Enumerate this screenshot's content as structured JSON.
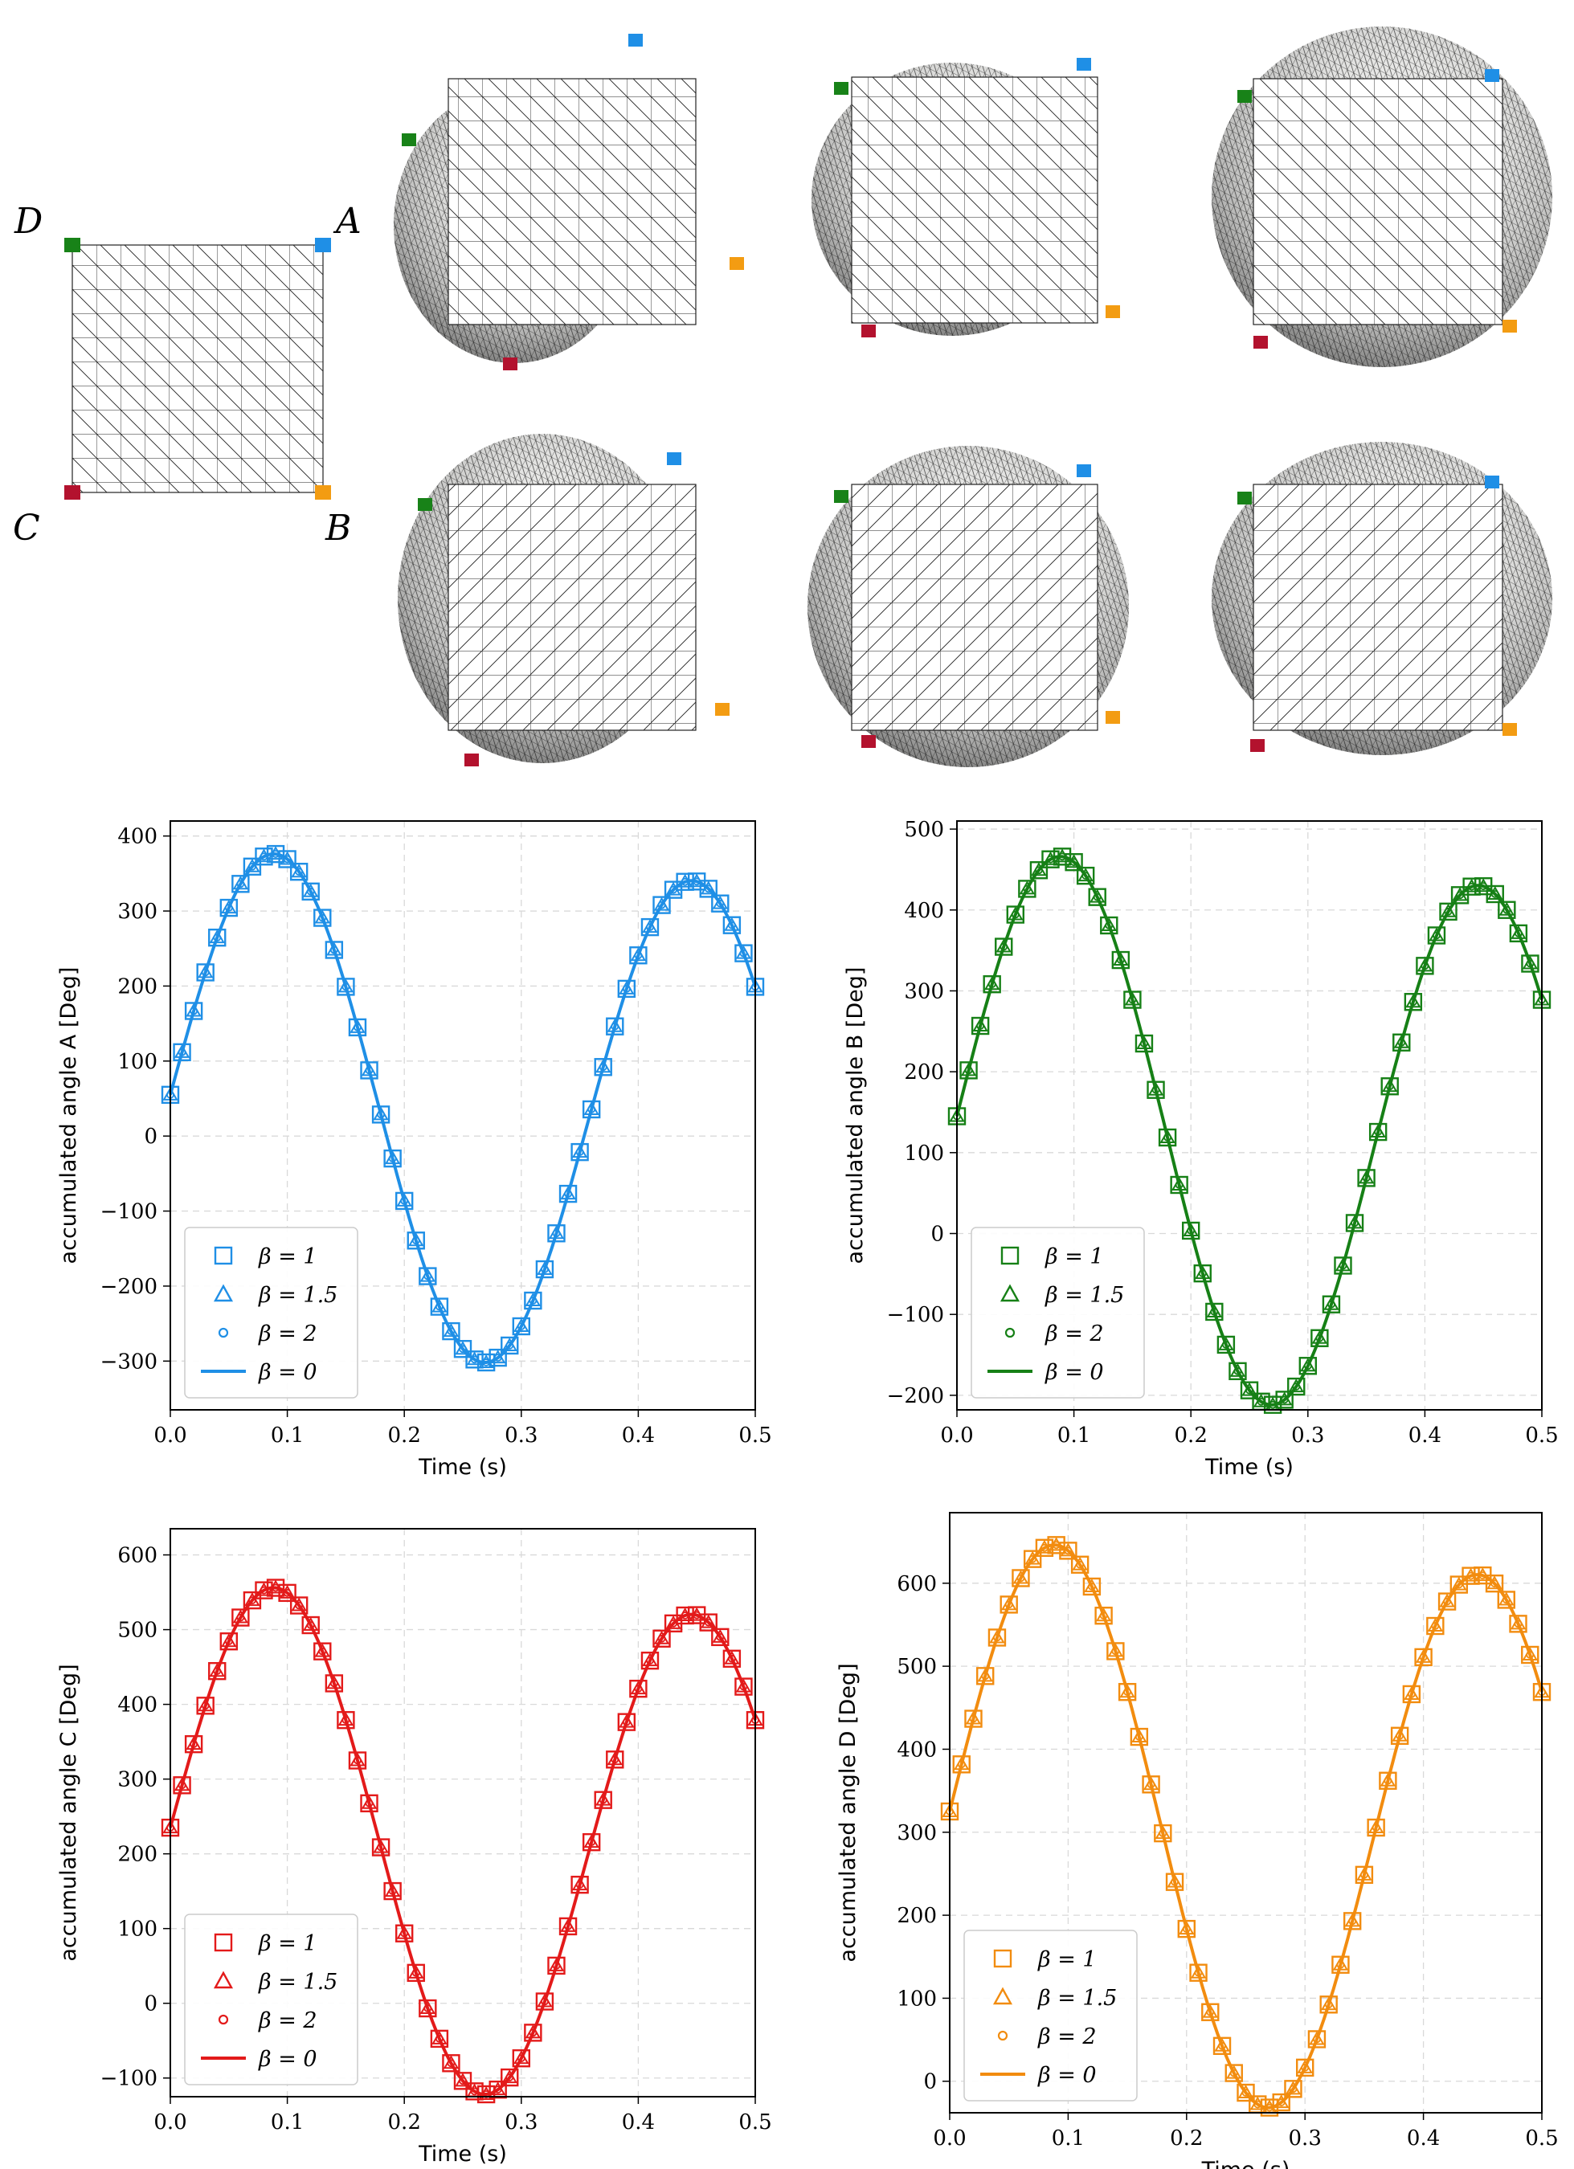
{
  "corners": {
    "labels": [
      {
        "key": "A",
        "text": "A",
        "color": "#1f8fe6"
      },
      {
        "key": "B",
        "text": "B",
        "color": "#f39c12"
      },
      {
        "key": "C",
        "text": "C",
        "color": "#b3122e"
      },
      {
        "key": "D",
        "text": "D",
        "color": "#188218"
      }
    ]
  },
  "chart_data": [
    {
      "type": "line",
      "panel": "A",
      "color": "#1f8fe6",
      "xlabel": "Time (s)",
      "ylabel": "accumulated angle A [Deg]",
      "xlim": [
        0,
        0.5
      ],
      "ylim": [
        -365,
        420
      ],
      "xticks": [
        0,
        0.1,
        0.2,
        0.3,
        0.4,
        0.5
      ],
      "xtick_labels": [
        "0.0",
        "0.1",
        "0.2",
        "0.3",
        "0.4",
        "0.5"
      ],
      "yticks": [
        -300,
        -200,
        -100,
        0,
        100,
        200,
        300,
        400
      ],
      "ytick_labels": [
        "−300",
        "−200",
        "−100",
        "0",
        "100",
        "200",
        "300",
        "400"
      ],
      "grid": true,
      "legend_position": "lower-left",
      "curve": {
        "offset": 55,
        "amp1": 330,
        "amp2": -25,
        "freq": 2.8,
        "x0": 0.0
      },
      "series": [
        {
          "name": "β = 1",
          "marker": "square"
        },
        {
          "name": "β = 1.5",
          "marker": "triangle"
        },
        {
          "name": "β = 2",
          "marker": "circle"
        },
        {
          "name": "β = 0",
          "marker": "line"
        }
      ]
    },
    {
      "type": "line",
      "panel": "B",
      "color": "#168016",
      "xlabel": "Time (s)",
      "ylabel": "accumulated angle B [Deg]",
      "xlim": [
        0,
        0.5
      ],
      "ylim": [
        -218,
        510
      ],
      "xticks": [
        0,
        0.1,
        0.2,
        0.3,
        0.4,
        0.5
      ],
      "xtick_labels": [
        "0.0",
        "0.1",
        "0.2",
        "0.3",
        "0.4",
        "0.5"
      ],
      "yticks": [
        -200,
        -100,
        0,
        100,
        200,
        300,
        400,
        500
      ],
      "ytick_labels": [
        "−200",
        "−100",
        "0",
        "100",
        "200",
        "300",
        "400",
        "500"
      ],
      "grid": true,
      "legend_position": "lower-left",
      "curve": {
        "offset": 145,
        "amp1": 330,
        "amp2": -25,
        "freq": 2.8,
        "x0": 0.0
      },
      "series": [
        {
          "name": "β = 1",
          "marker": "square"
        },
        {
          "name": "β = 1.5",
          "marker": "triangle"
        },
        {
          "name": "β = 2",
          "marker": "circle"
        },
        {
          "name": "β = 0",
          "marker": "line"
        }
      ]
    },
    {
      "type": "line",
      "panel": "C",
      "color": "#e31a1a",
      "xlabel": "Time (s)",
      "ylabel": "accumulated angle C [Deg]",
      "xlim": [
        0,
        0.5
      ],
      "ylim": [
        -125,
        635
      ],
      "xticks": [
        0,
        0.1,
        0.2,
        0.3,
        0.4,
        0.5
      ],
      "xtick_labels": [
        "0.0",
        "0.1",
        "0.2",
        "0.3",
        "0.4",
        "0.5"
      ],
      "yticks": [
        -100,
        0,
        100,
        200,
        300,
        400,
        500,
        600
      ],
      "ytick_labels": [
        "−100",
        "0",
        "100",
        "200",
        "300",
        "400",
        "500",
        "600"
      ],
      "grid": true,
      "legend_position": "lower-left",
      "curve": {
        "offset": 235,
        "amp1": 330,
        "amp2": -25,
        "freq": 2.8,
        "x0": 0.0
      },
      "series": [
        {
          "name": "β = 1",
          "marker": "square"
        },
        {
          "name": "β = 1.5",
          "marker": "triangle"
        },
        {
          "name": "β = 2",
          "marker": "circle"
        },
        {
          "name": "β = 0",
          "marker": "line"
        }
      ]
    },
    {
      "type": "line",
      "panel": "D",
      "color": "#f28c0f",
      "xlabel": "Time (s)",
      "ylabel": "accumulated angle D [Deg]",
      "xlim": [
        0,
        0.5
      ],
      "ylim": [
        -38,
        685
      ],
      "xticks": [
        0,
        0.1,
        0.2,
        0.3,
        0.4,
        0.5
      ],
      "xtick_labels": [
        "0.0",
        "0.1",
        "0.2",
        "0.3",
        "0.4",
        "0.5"
      ],
      "yticks": [
        0,
        100,
        200,
        300,
        400,
        500,
        600
      ],
      "ytick_labels": [
        "0",
        "100",
        "200",
        "300",
        "400",
        "500",
        "600"
      ],
      "grid": true,
      "legend_position": "lower-left",
      "curve": {
        "offset": 325,
        "amp1": 330,
        "amp2": -25,
        "freq": 2.8,
        "x0": 0.0
      },
      "series": [
        {
          "name": "β = 1",
          "marker": "square"
        },
        {
          "name": "β = 1.5",
          "marker": "triangle"
        },
        {
          "name": "β = 2",
          "marker": "circle"
        },
        {
          "name": "β = 0",
          "marker": "line"
        }
      ]
    }
  ]
}
